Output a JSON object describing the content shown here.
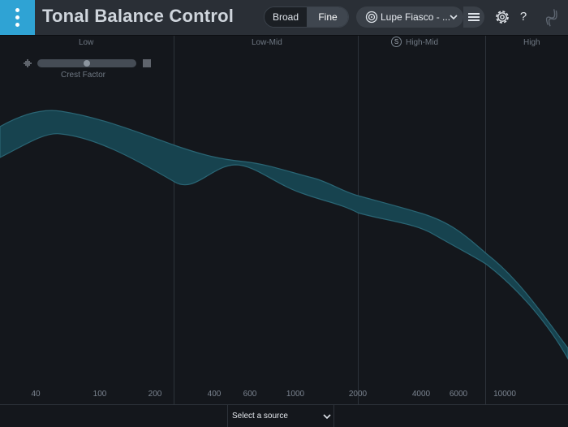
{
  "header": {
    "title": "Tonal Balance Control",
    "view_modes": [
      {
        "label": "Broad",
        "selected": false
      },
      {
        "label": "Fine",
        "selected": true
      }
    ],
    "preset": {
      "label": "Lupe Fiasco - ...",
      "icon": "target-icon"
    },
    "menu_icon": "vertical-dots-icon",
    "list_icon": "list-icon",
    "settings_icon": "gear-icon",
    "help_label": "?",
    "logo_icon": "izotope-logo"
  },
  "bands": [
    {
      "label": "Low"
    },
    {
      "label": "Low-Mid"
    },
    {
      "label": "High-Mid",
      "solo_label": "S"
    },
    {
      "label": "High"
    }
  ],
  "crest_factor": {
    "label": "Crest Factor",
    "value": 0.5
  },
  "frequency_axis": {
    "ticks": [
      "40",
      "100",
      "200",
      "400",
      "600",
      "1000",
      "2000",
      "4000",
      "6000",
      "10000"
    ]
  },
  "footer": {
    "source_label": "Select a source"
  },
  "colors": {
    "accent": "#2fa3d4",
    "range_fill": "#17434f",
    "range_stroke": "#2a6574",
    "background": "#14171c",
    "header": "#2a2f36"
  }
}
